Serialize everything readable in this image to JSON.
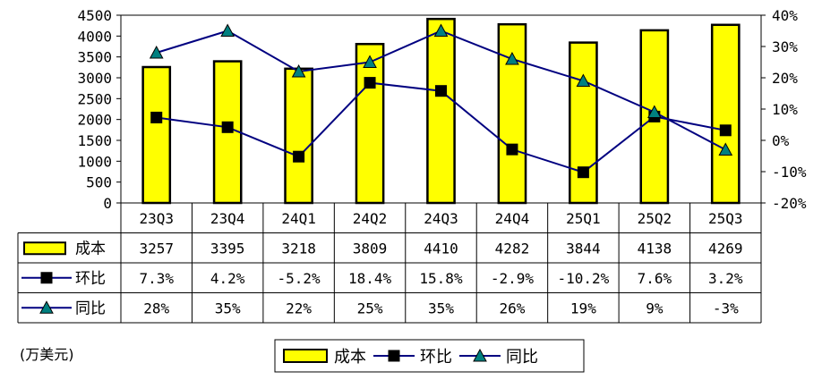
{
  "chart_data": {
    "type": "bar",
    "unit_label": "(万美元)",
    "categories": [
      "23Q3",
      "23Q4",
      "24Q1",
      "24Q2",
      "24Q3",
      "24Q4",
      "25Q1",
      "25Q2",
      "25Q3"
    ],
    "y_left": {
      "lim": [
        0,
        4500
      ],
      "ticks": [
        "0",
        "500",
        "1000",
        "1500",
        "2000",
        "2500",
        "3000",
        "3500",
        "4000",
        "4500"
      ]
    },
    "y_right": {
      "lim": [
        -20,
        40
      ],
      "ticks": [
        "-20%",
        "-10%",
        "0%",
        "10%",
        "20%",
        "30%",
        "40%"
      ]
    },
    "series": [
      {
        "name": "成本",
        "kind": "bar",
        "axis": "left",
        "color": "#ffff00",
        "values": [
          3257,
          3395,
          3218,
          3809,
          4410,
          4282,
          3844,
          4138,
          4269
        ],
        "table_labels": [
          "3257",
          "3395",
          "3218",
          "3809",
          "4410",
          "4282",
          "3844",
          "4138",
          "4269"
        ]
      },
      {
        "name": "环比",
        "kind": "line",
        "axis": "right",
        "marker": "square",
        "line_color": "#000080",
        "marker_color": "#000000",
        "values": [
          7.3,
          4.2,
          -5.2,
          18.4,
          15.8,
          -2.9,
          -10.2,
          7.6,
          3.2
        ],
        "table_labels": [
          "7.3%",
          "4.2%",
          "-5.2%",
          "18.4%",
          "15.8%",
          "-2.9%",
          "-10.2%",
          "7.6%",
          "3.2%"
        ]
      },
      {
        "name": "同比",
        "kind": "line",
        "axis": "right",
        "marker": "triangle",
        "line_color": "#000080",
        "marker_color": "#008080",
        "values": [
          28,
          35,
          22,
          25,
          35,
          26,
          19,
          9,
          -3
        ],
        "table_labels": [
          "28%",
          "35%",
          "22%",
          "25%",
          "35%",
          "26%",
          "19%",
          "9%",
          "-3%"
        ]
      }
    ],
    "legend_position": "bottom-center",
    "grid": false
  }
}
